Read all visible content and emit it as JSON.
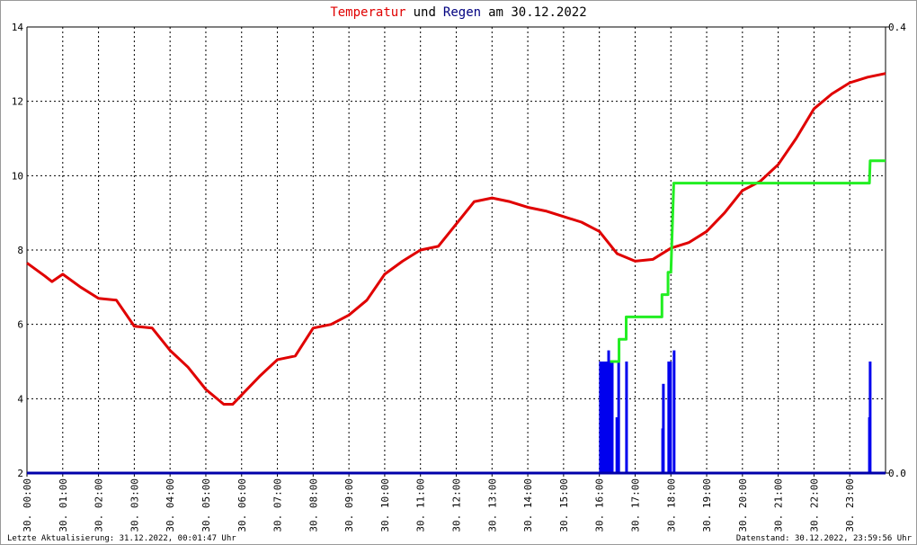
{
  "title_parts": [
    {
      "text": "Temperatur",
      "color": "#e00000"
    },
    {
      "text": "und",
      "color": "#000000"
    },
    {
      "text": "Regen",
      "color": "#000080"
    },
    {
      "text": "am 30.12.2022",
      "color": "#000000"
    }
  ],
  "footer_left": "Letzte Aktualisierung: 31.12.2022, 00:01:47 Uhr",
  "footer_right": "Datenstand: 30.12.2022, 23:59:56 Uhr",
  "chart_data": {
    "type": "line",
    "grid": true,
    "xlim": [
      0,
      24
    ],
    "xticks": [
      {
        "value": 0,
        "label": "30. 00:00"
      },
      {
        "value": 1,
        "label": "30. 01:00"
      },
      {
        "value": 2,
        "label": "30. 02:00"
      },
      {
        "value": 3,
        "label": "30. 03:00"
      },
      {
        "value": 4,
        "label": "30. 04:00"
      },
      {
        "value": 5,
        "label": "30. 05:00"
      },
      {
        "value": 6,
        "label": "30. 06:00"
      },
      {
        "value": 7,
        "label": "30. 07:00"
      },
      {
        "value": 8,
        "label": "30. 08:00"
      },
      {
        "value": 9,
        "label": "30. 09:00"
      },
      {
        "value": 10,
        "label": "30. 10:00"
      },
      {
        "value": 11,
        "label": "30. 11:00"
      },
      {
        "value": 12,
        "label": "30. 12:00"
      },
      {
        "value": 13,
        "label": "30. 13:00"
      },
      {
        "value": 14,
        "label": "30. 14:00"
      },
      {
        "value": 15,
        "label": "30. 15:00"
      },
      {
        "value": 16,
        "label": "30. 16:00"
      },
      {
        "value": 17,
        "label": "30. 17:00"
      },
      {
        "value": 18,
        "label": "30. 18:00"
      },
      {
        "value": 19,
        "label": "30. 19:00"
      },
      {
        "value": 20,
        "label": "30. 20:00"
      },
      {
        "value": 21,
        "label": "30. 21:00"
      },
      {
        "value": 22,
        "label": "30. 22:00"
      },
      {
        "value": 23,
        "label": "30. 23:00"
      }
    ],
    "ylim": [
      2,
      14
    ],
    "yticks": [
      2,
      4,
      6,
      8,
      10,
      12,
      14
    ],
    "y2lim": [
      0,
      0.4
    ],
    "y2ticks": [
      {
        "value": 0,
        "label": "0.0"
      },
      0.4
    ],
    "series": [
      {
        "kind": "line",
        "color": "#e00000",
        "x": [
          0,
          0.5,
          0.7,
          1.0,
          1.5,
          2.0,
          2.5,
          3.0,
          3.5,
          4.0,
          4.5,
          5.0,
          5.5,
          5.75,
          6.0,
          6.5,
          7.0,
          7.5,
          8.0,
          8.5,
          9.0,
          9.5,
          10.0,
          10.5,
          11.0,
          11.5,
          12.0,
          12.5,
          13.0,
          13.5,
          14.0,
          14.5,
          15.0,
          15.5,
          16.0,
          16.5,
          17.0,
          17.5,
          18.0,
          18.5,
          19.0,
          19.5,
          20.0,
          20.5,
          21.0,
          21.5,
          22.0,
          22.5,
          23.0,
          23.5,
          24
        ],
        "values": [
          7.65,
          7.3,
          7.15,
          7.35,
          7.0,
          6.7,
          6.65,
          5.95,
          5.9,
          5.3,
          4.85,
          4.25,
          3.85,
          3.85,
          4.1,
          4.6,
          5.05,
          5.15,
          5.9,
          6.0,
          6.25,
          6.65,
          7.35,
          7.7,
          8.0,
          8.1,
          8.7,
          9.3,
          9.4,
          9.3,
          9.15,
          9.05,
          8.9,
          8.75,
          8.5,
          7.9,
          7.7,
          7.75,
          8.05,
          8.2,
          8.5,
          9.0,
          9.6,
          9.85,
          10.3,
          11.0,
          11.8,
          12.2,
          12.5,
          12.65,
          12.75
        ]
      },
      {
        "kind": "line",
        "color": "#22ee22",
        "axis": "y2",
        "x": [
          16.3,
          16.55,
          16.55,
          16.75,
          16.75,
          17.75,
          17.75,
          17.92,
          17.92,
          18.0,
          18.08,
          23.55,
          23.57,
          24
        ],
        "values": [
          0.1,
          0.1,
          0.12,
          0.12,
          0.14,
          0.14,
          0.16,
          0.16,
          0.18,
          0.18,
          0.26,
          0.26,
          0.28,
          0.28
        ]
      },
      {
        "kind": "bar",
        "color": "#0000ee",
        "axis": "y2",
        "x": [
          16.03,
          16.08,
          16.13,
          16.18,
          16.23,
          16.26,
          16.31,
          16.36,
          16.49,
          16.54,
          16.76,
          17.77,
          17.79,
          17.94,
          17.99,
          18.09,
          23.55,
          23.57
        ],
        "values": [
          0.1,
          0.1,
          0.1,
          0.1,
          0.1,
          0.11,
          0.1,
          0.1,
          0.05,
          0.1,
          0.1,
          0.04,
          0.08,
          0.1,
          0.1,
          0.11,
          0.05,
          0.1
        ]
      }
    ]
  }
}
